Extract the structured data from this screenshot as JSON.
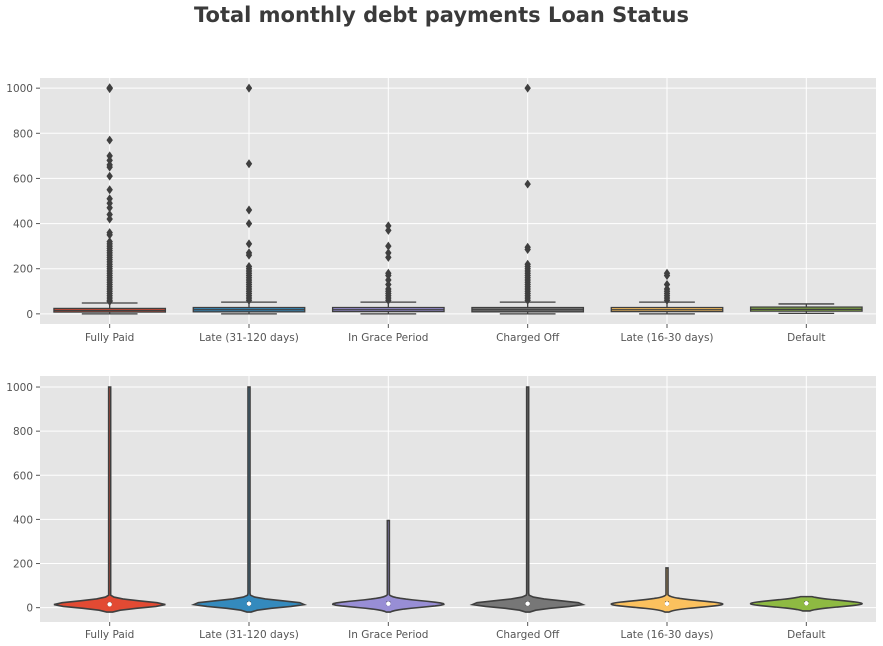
{
  "title": "Total monthly debt payments Loan Status",
  "colors": {
    "background": "#e5e5e5",
    "grid": "#ffffff",
    "line": "#3f3f3f"
  },
  "chart_data": [
    {
      "type": "box",
      "categories": [
        "Fully Paid",
        "Late (31-120 days)",
        "In Grace Period",
        "Charged Off",
        "Late (16-30 days)",
        "Default"
      ],
      "colors": [
        "#e24a33",
        "#348abd",
        "#988ed5",
        "#777777",
        "#fbc15e",
        "#8eba42"
      ],
      "ylim": [
        -45,
        1045
      ],
      "yticks": [
        0,
        200,
        400,
        600,
        800,
        1000
      ],
      "grid": true,
      "boxes": [
        {
          "q1": 8,
          "median": 15,
          "q3": 24,
          "whisker_low": 0,
          "whisker_high": 48,
          "outliers": [
            1000,
            1002,
            998,
            770,
            700,
            680,
            660,
            650,
            610,
            550,
            510,
            490,
            470,
            440,
            420,
            360,
            350,
            320,
            310,
            300,
            290,
            280,
            270,
            260,
            250,
            240,
            230,
            220,
            210,
            200,
            190,
            180,
            170,
            160,
            150,
            140,
            130,
            120,
            110,
            100,
            90,
            80,
            70,
            60,
            55
          ]
        },
        {
          "q1": 9,
          "median": 18,
          "q3": 28,
          "whisker_low": 0,
          "whisker_high": 52,
          "outliers": [
            1000,
            665,
            460,
            400,
            310,
            270,
            260,
            210,
            200,
            190,
            180,
            170,
            160,
            150,
            140,
            130,
            120,
            110,
            100,
            90,
            80,
            70,
            60
          ]
        },
        {
          "q1": 10,
          "median": 18,
          "q3": 28,
          "whisker_low": 0,
          "whisker_high": 52,
          "outliers": [
            390,
            370,
            300,
            270,
            250,
            180,
            170,
            150,
            130,
            110,
            100,
            90,
            80,
            70,
            60
          ]
        },
        {
          "q1": 9,
          "median": 18,
          "q3": 28,
          "whisker_low": 0,
          "whisker_high": 52,
          "outliers": [
            1000,
            575,
            295,
            285,
            220,
            210,
            200,
            190,
            180,
            170,
            160,
            150,
            140,
            130,
            120,
            110,
            100,
            90,
            80,
            70,
            60
          ]
        },
        {
          "q1": 10,
          "median": 18,
          "q3": 28,
          "whisker_low": 0,
          "whisker_high": 52,
          "outliers": [
            180,
            170,
            130,
            110,
            100,
            90,
            80,
            70,
            60
          ]
        },
        {
          "q1": 12,
          "median": 20,
          "q3": 30,
          "whisker_low": 2,
          "whisker_high": 44,
          "outliers": []
        }
      ]
    },
    {
      "type": "violin",
      "categories": [
        "Fully Paid",
        "Late (31-120 days)",
        "In Grace Period",
        "Charged Off",
        "Late (16-30 days)",
        "Default"
      ],
      "colors": [
        "#e24a33",
        "#348abd",
        "#988ed5",
        "#777777",
        "#fbc15e",
        "#8eba42"
      ],
      "ylim": [
        -65,
        1050
      ],
      "yticks": [
        0,
        200,
        400,
        600,
        800,
        1000
      ],
      "grid": true,
      "violins": [
        {
          "min": -20,
          "max": 1000,
          "peak": 14,
          "q1": 8,
          "median": 15,
          "q3": 24
        },
        {
          "min": -20,
          "max": 1000,
          "peak": 16,
          "q1": 9,
          "median": 18,
          "q3": 28
        },
        {
          "min": -20,
          "max": 395,
          "peak": 16,
          "q1": 10,
          "median": 18,
          "q3": 28
        },
        {
          "min": -20,
          "max": 1000,
          "peak": 16,
          "q1": 9,
          "median": 18,
          "q3": 28
        },
        {
          "min": -20,
          "max": 180,
          "peak": 16,
          "q1": 10,
          "median": 18,
          "q3": 28
        },
        {
          "min": -15,
          "max": 50,
          "peak": 18,
          "q1": 12,
          "median": 20,
          "q3": 30
        }
      ]
    }
  ]
}
